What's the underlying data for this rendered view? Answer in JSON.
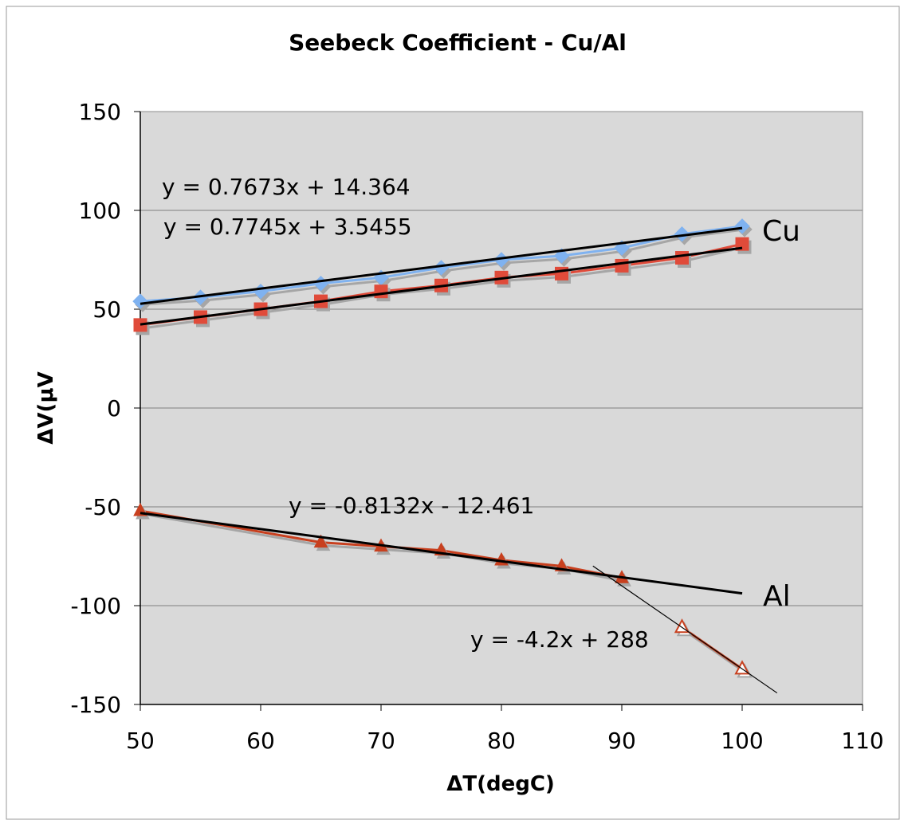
{
  "chart_data": {
    "type": "scatter",
    "title": "Seebeck Coefficient - Cu/Al",
    "xlabel": "ΔT(degC)",
    "ylabel": "ΔV(μV",
    "xlim": [
      50,
      110
    ],
    "ylim": [
      -150,
      150
    ],
    "x_ticks": [
      50,
      60,
      70,
      80,
      90,
      100,
      110
    ],
    "y_ticks": [
      150,
      100,
      50,
      0,
      -50,
      -100,
      -150
    ],
    "grid": "horizontal",
    "plot_background": "#d9d9d9",
    "series": [
      {
        "label": "Cu",
        "marker": "diamond",
        "color": "#7fb2f0",
        "x": [
          50,
          55,
          60,
          65,
          70,
          75,
          80,
          85,
          90,
          95,
          100
        ],
        "y": [
          54,
          56,
          59,
          63,
          66,
          71,
          75,
          77,
          81,
          88,
          92
        ]
      },
      {
        "marker": "square",
        "color": "#e04b3a",
        "x": [
          50,
          55,
          60,
          65,
          70,
          75,
          80,
          85,
          90,
          95,
          100
        ],
        "y": [
          42,
          46,
          50,
          54,
          59,
          62,
          66,
          68,
          72,
          76,
          83
        ]
      },
      {
        "label": "Al",
        "marker": "triangle",
        "color": "#c8401f",
        "x": [
          50,
          65,
          70,
          75,
          80,
          85,
          90
        ],
        "y": [
          -52,
          -68,
          -70,
          -72,
          -77,
          -80,
          -86
        ]
      },
      {
        "marker": "triangle-open",
        "color": "#c8401f",
        "x": [
          95,
          100
        ],
        "y": [
          -111,
          -132
        ]
      }
    ],
    "trendlines": [
      {
        "equation": "y = 0.7673x + 14.364",
        "slope": 0.7673,
        "intercept": 14.364,
        "x_range": [
          50,
          100
        ],
        "width": 3
      },
      {
        "equation": "y = 0.7745x + 3.5455",
        "slope": 0.7745,
        "intercept": 3.5455,
        "x_range": [
          50,
          100
        ],
        "width": 3
      },
      {
        "equation": "y = -0.8132x - 12.461",
        "slope": -0.8132,
        "intercept": -12.461,
        "x_range": [
          50,
          100
        ],
        "width": 3
      },
      {
        "equation": "y = -4.2x + 288",
        "slope": -4.2,
        "intercept": 288,
        "x_range": [
          87.6,
          102.9
        ],
        "width": 1.2
      }
    ]
  }
}
